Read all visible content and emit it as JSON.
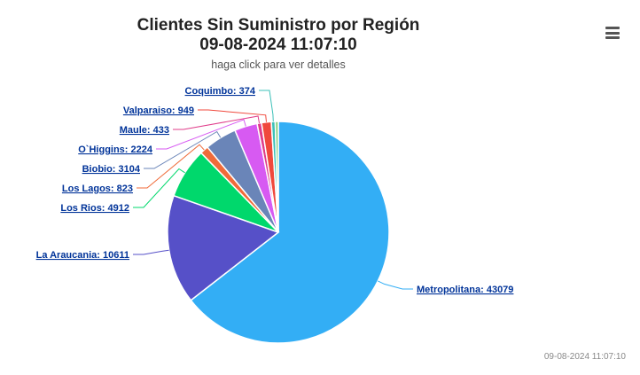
{
  "chart": {
    "title_line1": "Clientes Sin Suministro por Región",
    "title_line2": "09-08-2024 11:07:10",
    "subtitle": "haga click para ver detalles",
    "timestamp": "09-08-2024 11:07:10",
    "menu_icon": "hamburger-menu-icon"
  },
  "chart_data": {
    "type": "pie",
    "title": "Clientes Sin Suministro por Región",
    "subtitle": "haga click para ver detalles",
    "slices": [
      {
        "name": "Metropolitana",
        "value": 43079,
        "label": "Metropolitana: 43079",
        "color": "#33aef5"
      },
      {
        "name": "La Araucania",
        "value": 10611,
        "label": "La Araucania: 10611",
        "color": "#5650c8"
      },
      {
        "name": "Los Rios",
        "value": 4912,
        "label": "Los Rios: 4912",
        "color": "#00d86c"
      },
      {
        "name": "Los Lagos",
        "value": 823,
        "label": "Los Lagos: 823",
        "color": "#f06b3a"
      },
      {
        "name": "Biobio",
        "value": 3104,
        "label": "Biobio: 3104",
        "color": "#6a85b8"
      },
      {
        "name": "O`Higgins",
        "value": 2224,
        "label": "O`Higgins: 2224",
        "color": "#d75af2"
      },
      {
        "name": "Maule",
        "value": 433,
        "label": "Maule: 433",
        "color": "#e03c8a"
      },
      {
        "name": "Valparaiso",
        "value": 949,
        "label": "Valparaiso: 949",
        "color": "#f0483c"
      },
      {
        "name": "Coquimbo",
        "value": 374,
        "label": "Coquimbo: 374",
        "color": "#3cc0b8"
      },
      {
        "name": "",
        "value": 300,
        "label": "",
        "color": "#7fcf7a"
      }
    ]
  }
}
